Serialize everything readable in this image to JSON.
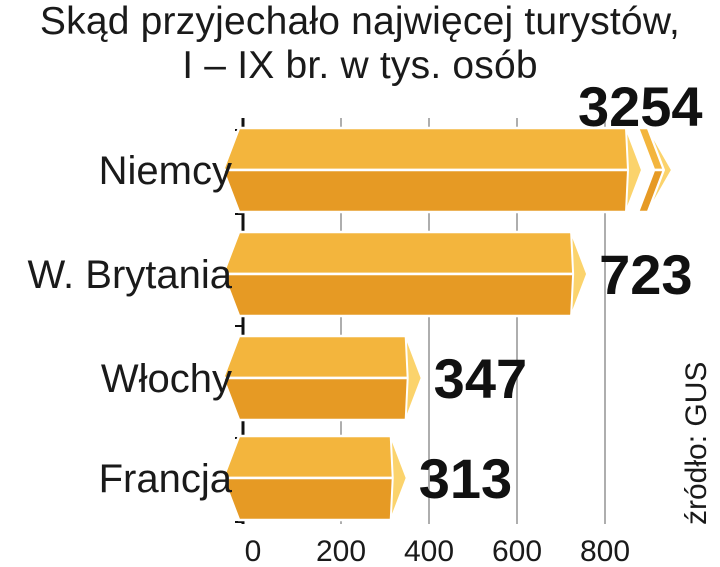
{
  "chart_data": {
    "type": "bar",
    "orientation": "horizontal",
    "title": "Skąd przyjechało najwięcej turystów,",
    "subtitle": "I – IX br. w tys. osób",
    "categories": [
      "Niemcy",
      "W. Brytania",
      "Włochy",
      "Francja"
    ],
    "values": [
      3254,
      723,
      347,
      313
    ],
    "value_labels": [
      "3254",
      "723",
      "347",
      "313"
    ],
    "xlim": [
      0,
      800
    ],
    "xticks": [
      0,
      200,
      400,
      600,
      800
    ],
    "xtick_labels": [
      "0",
      "200",
      "400",
      "600",
      "800"
    ],
    "axis_break": true,
    "grid": true,
    "source": "źródło: GUS",
    "colors": {
      "bar_top": "#f3b53d",
      "bar_bottom": "#e69a24",
      "bar_end": "#fbd36c",
      "bar_stroke": "#ffffff",
      "grid": "#9a9a9a"
    }
  }
}
